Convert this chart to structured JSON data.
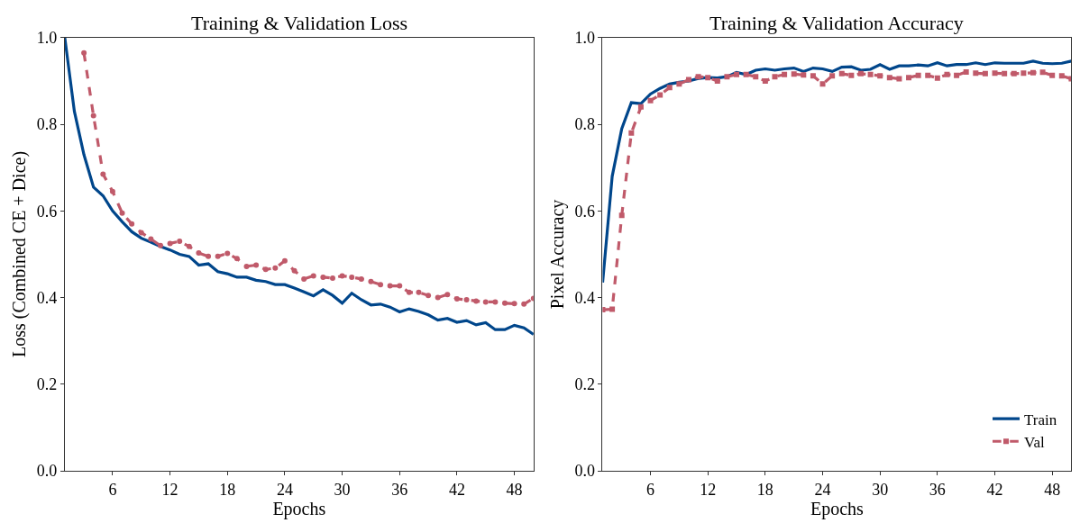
{
  "chart_data": [
    {
      "type": "line",
      "title": "Training & Validation Loss",
      "xlabel": "Epochs",
      "ylabel": "Loss (Combined CE + Dice)",
      "x": [
        1,
        2,
        3,
        4,
        5,
        6,
        7,
        8,
        9,
        10,
        11,
        12,
        13,
        14,
        15,
        16,
        17,
        18,
        19,
        20,
        21,
        22,
        23,
        24,
        25,
        26,
        27,
        28,
        29,
        30,
        31,
        32,
        33,
        34,
        35,
        36,
        37,
        38,
        39,
        40,
        41,
        42,
        43,
        44,
        45,
        46,
        47,
        48,
        49,
        50
      ],
      "series": [
        {
          "color": "#00468b",
          "line_style": "solid",
          "marker": "none",
          "values": [
            1.0,
            0.83,
            0.73,
            0.655,
            0.635,
            0.6,
            0.575,
            0.552,
            0.537,
            0.528,
            0.518,
            0.51,
            0.5,
            0.495,
            0.475,
            0.478,
            0.46,
            0.455,
            0.447,
            0.447,
            0.44,
            0.437,
            0.43,
            0.43,
            0.422,
            0.413,
            0.404,
            0.418,
            0.405,
            0.387,
            0.41,
            0.395,
            0.383,
            0.385,
            0.378,
            0.367,
            0.374,
            0.368,
            0.36,
            0.348,
            0.352,
            0.343,
            0.347,
            0.337,
            0.342,
            0.326,
            0.326,
            0.336,
            0.33,
            0.315
          ]
        },
        {
          "color": "#c05a6a",
          "line_style": "dashed",
          "marker": "circle",
          "values": [
            null,
            null,
            0.965,
            0.82,
            0.685,
            0.645,
            0.595,
            0.57,
            0.55,
            0.535,
            0.52,
            0.525,
            0.53,
            0.518,
            0.503,
            0.495,
            0.495,
            0.502,
            0.49,
            0.472,
            0.475,
            0.465,
            0.468,
            0.485,
            0.462,
            0.443,
            0.45,
            0.447,
            0.445,
            0.45,
            0.447,
            0.443,
            0.437,
            0.43,
            0.427,
            0.427,
            0.412,
            0.412,
            0.405,
            0.4,
            0.407,
            0.397,
            0.395,
            0.392,
            0.39,
            0.39,
            0.387,
            0.386,
            0.385,
            0.398
          ]
        }
      ],
      "xlim": [
        1,
        50
      ],
      "xticks": [
        6,
        12,
        18,
        24,
        30,
        36,
        42,
        48
      ],
      "ylim": [
        0,
        1
      ],
      "yticks": [
        {
          "value": 0,
          "label": "0.0"
        },
        {
          "value": 0.2,
          "label": "0.2"
        },
        {
          "value": 0.4,
          "label": "0.4"
        },
        {
          "value": 0.6,
          "label": "0.6"
        },
        {
          "value": 0.8,
          "label": "0.8"
        },
        {
          "value": 1,
          "label": "1.0"
        }
      ],
      "legend": false
    },
    {
      "type": "line",
      "title": "Training & Validation Accuracy",
      "xlabel": "Epochs",
      "ylabel": "Pixel Accuracy",
      "x": [
        1,
        2,
        3,
        4,
        5,
        6,
        7,
        8,
        9,
        10,
        11,
        12,
        13,
        14,
        15,
        16,
        17,
        18,
        19,
        20,
        21,
        22,
        23,
        24,
        25,
        26,
        27,
        28,
        29,
        30,
        31,
        32,
        33,
        34,
        35,
        36,
        37,
        38,
        39,
        40,
        41,
        42,
        43,
        44,
        45,
        46,
        47,
        48,
        49,
        50
      ],
      "series": [
        {
          "name": "Train",
          "color": "#00468b",
          "line_style": "solid",
          "marker": "none",
          "values": [
            0.435,
            0.68,
            0.79,
            0.85,
            0.848,
            0.87,
            0.883,
            0.893,
            0.897,
            0.9,
            0.906,
            0.908,
            0.907,
            0.91,
            0.92,
            0.915,
            0.925,
            0.928,
            0.925,
            0.928,
            0.93,
            0.922,
            0.93,
            0.928,
            0.922,
            0.932,
            0.933,
            0.925,
            0.927,
            0.938,
            0.927,
            0.935,
            0.935,
            0.937,
            0.935,
            0.942,
            0.935,
            0.938,
            0.938,
            0.942,
            0.938,
            0.942,
            0.941,
            0.941,
            0.941,
            0.946,
            0.941,
            0.94,
            0.941,
            0.946
          ]
        },
        {
          "name": "Val",
          "color": "#c05a6a",
          "line_style": "dashed",
          "marker": "square",
          "values": [
            0.372,
            0.373,
            0.59,
            0.78,
            0.84,
            0.855,
            0.868,
            0.885,
            0.893,
            0.903,
            0.91,
            0.908,
            0.9,
            0.91,
            0.915,
            0.915,
            0.91,
            0.9,
            0.91,
            0.915,
            0.916,
            0.914,
            0.912,
            0.893,
            0.912,
            0.917,
            0.913,
            0.917,
            0.915,
            0.912,
            0.908,
            0.905,
            0.908,
            0.913,
            0.913,
            0.907,
            0.915,
            0.913,
            0.921,
            0.918,
            0.917,
            0.918,
            0.917,
            0.917,
            0.918,
            0.919,
            0.92,
            0.913,
            0.912,
            0.905
          ]
        }
      ],
      "xlim": [
        1,
        50
      ],
      "xticks": [
        6,
        12,
        18,
        24,
        30,
        36,
        42,
        48
      ],
      "ylim": [
        0,
        1
      ],
      "yticks": [
        {
          "value": 0,
          "label": "0.0"
        },
        {
          "value": 0.2,
          "label": "0.2"
        },
        {
          "value": 0.4,
          "label": "0.4"
        },
        {
          "value": 0.6,
          "label": "0.6"
        },
        {
          "value": 0.8,
          "label": "0.8"
        },
        {
          "value": 1,
          "label": "1.0"
        }
      ],
      "legend": "bottom right"
    }
  ]
}
